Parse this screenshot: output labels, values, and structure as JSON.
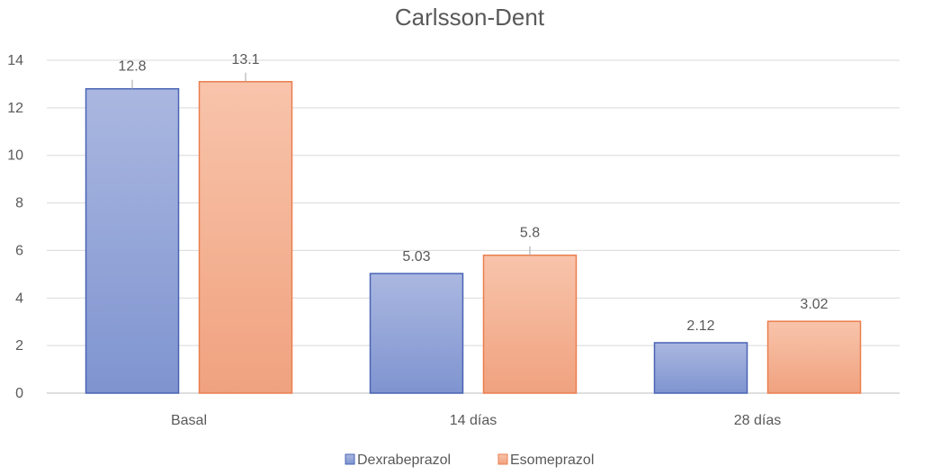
{
  "chart_data": {
    "type": "bar",
    "title": "Carlsson-Dent",
    "categories": [
      "Basal",
      "14 días",
      "28 días"
    ],
    "series": [
      {
        "name": "Dexrabeprazol",
        "values": [
          12.8,
          5.03,
          2.12
        ],
        "labels": [
          "12.8",
          "5.03",
          "2.12"
        ],
        "fill_top": "#aab7e0",
        "fill_bottom": "#7f94d0",
        "stroke": "#4a64b4"
      },
      {
        "name": "Esomeprazol",
        "values": [
          13.1,
          5.8,
          3.02
        ],
        "labels": [
          "13.1",
          "5.8",
          "3.02"
        ],
        "fill_top": "#f8c4ab",
        "fill_bottom": "#f0a27f",
        "stroke": "#ea7e4e"
      }
    ],
    "ylim": [
      0,
      14
    ],
    "yticks": [
      0,
      2,
      4,
      6,
      8,
      10,
      12,
      14
    ],
    "xlabel": "",
    "ylabel": "",
    "grid": true,
    "legend_position": "bottom"
  }
}
